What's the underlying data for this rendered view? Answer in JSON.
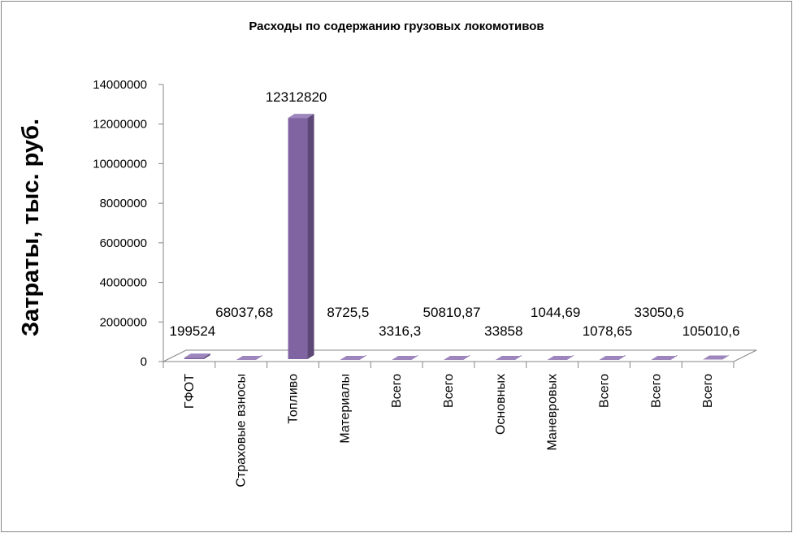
{
  "chart_data": {
    "type": "bar",
    "title": "Расходы по содержанию грузовых локомотивов",
    "ylabel": "Затраты, тыс. руб.",
    "xlabel": "",
    "ylim": [
      0,
      14000000
    ],
    "yticks": [
      "0",
      "2000000",
      "4000000",
      "6000000",
      "8000000",
      "10000000",
      "12000000",
      "14000000"
    ],
    "ytick_values": [
      0,
      2000000,
      4000000,
      6000000,
      8000000,
      10000000,
      12000000,
      14000000
    ],
    "categories": [
      "ГФОТ",
      "Страховые взносы",
      "Топливо",
      "Материалы",
      "Всего",
      "Всего",
      "Основных",
      "Маневровых",
      "Всего",
      "Всего",
      "Всего"
    ],
    "values": [
      199524,
      68037.68,
      12312820,
      8725.5,
      3316.3,
      50810.87,
      33858,
      1044.69,
      1078.65,
      33050.6,
      105010.6
    ],
    "value_labels": [
      "199524",
      "68037,68",
      "12312820",
      "8725,5",
      "3316,3",
      "50810,87",
      "33858",
      "1044,69",
      "1078,65",
      "33050,6",
      "105010,6"
    ],
    "grid": false,
    "legend": "none",
    "bar_style": "3d",
    "colors": {
      "bar_front": "#8064a2",
      "bar_side": "#5c4776",
      "bar_top": "#9d85bd",
      "floor": "#ffffff",
      "axis": "#868686"
    }
  }
}
